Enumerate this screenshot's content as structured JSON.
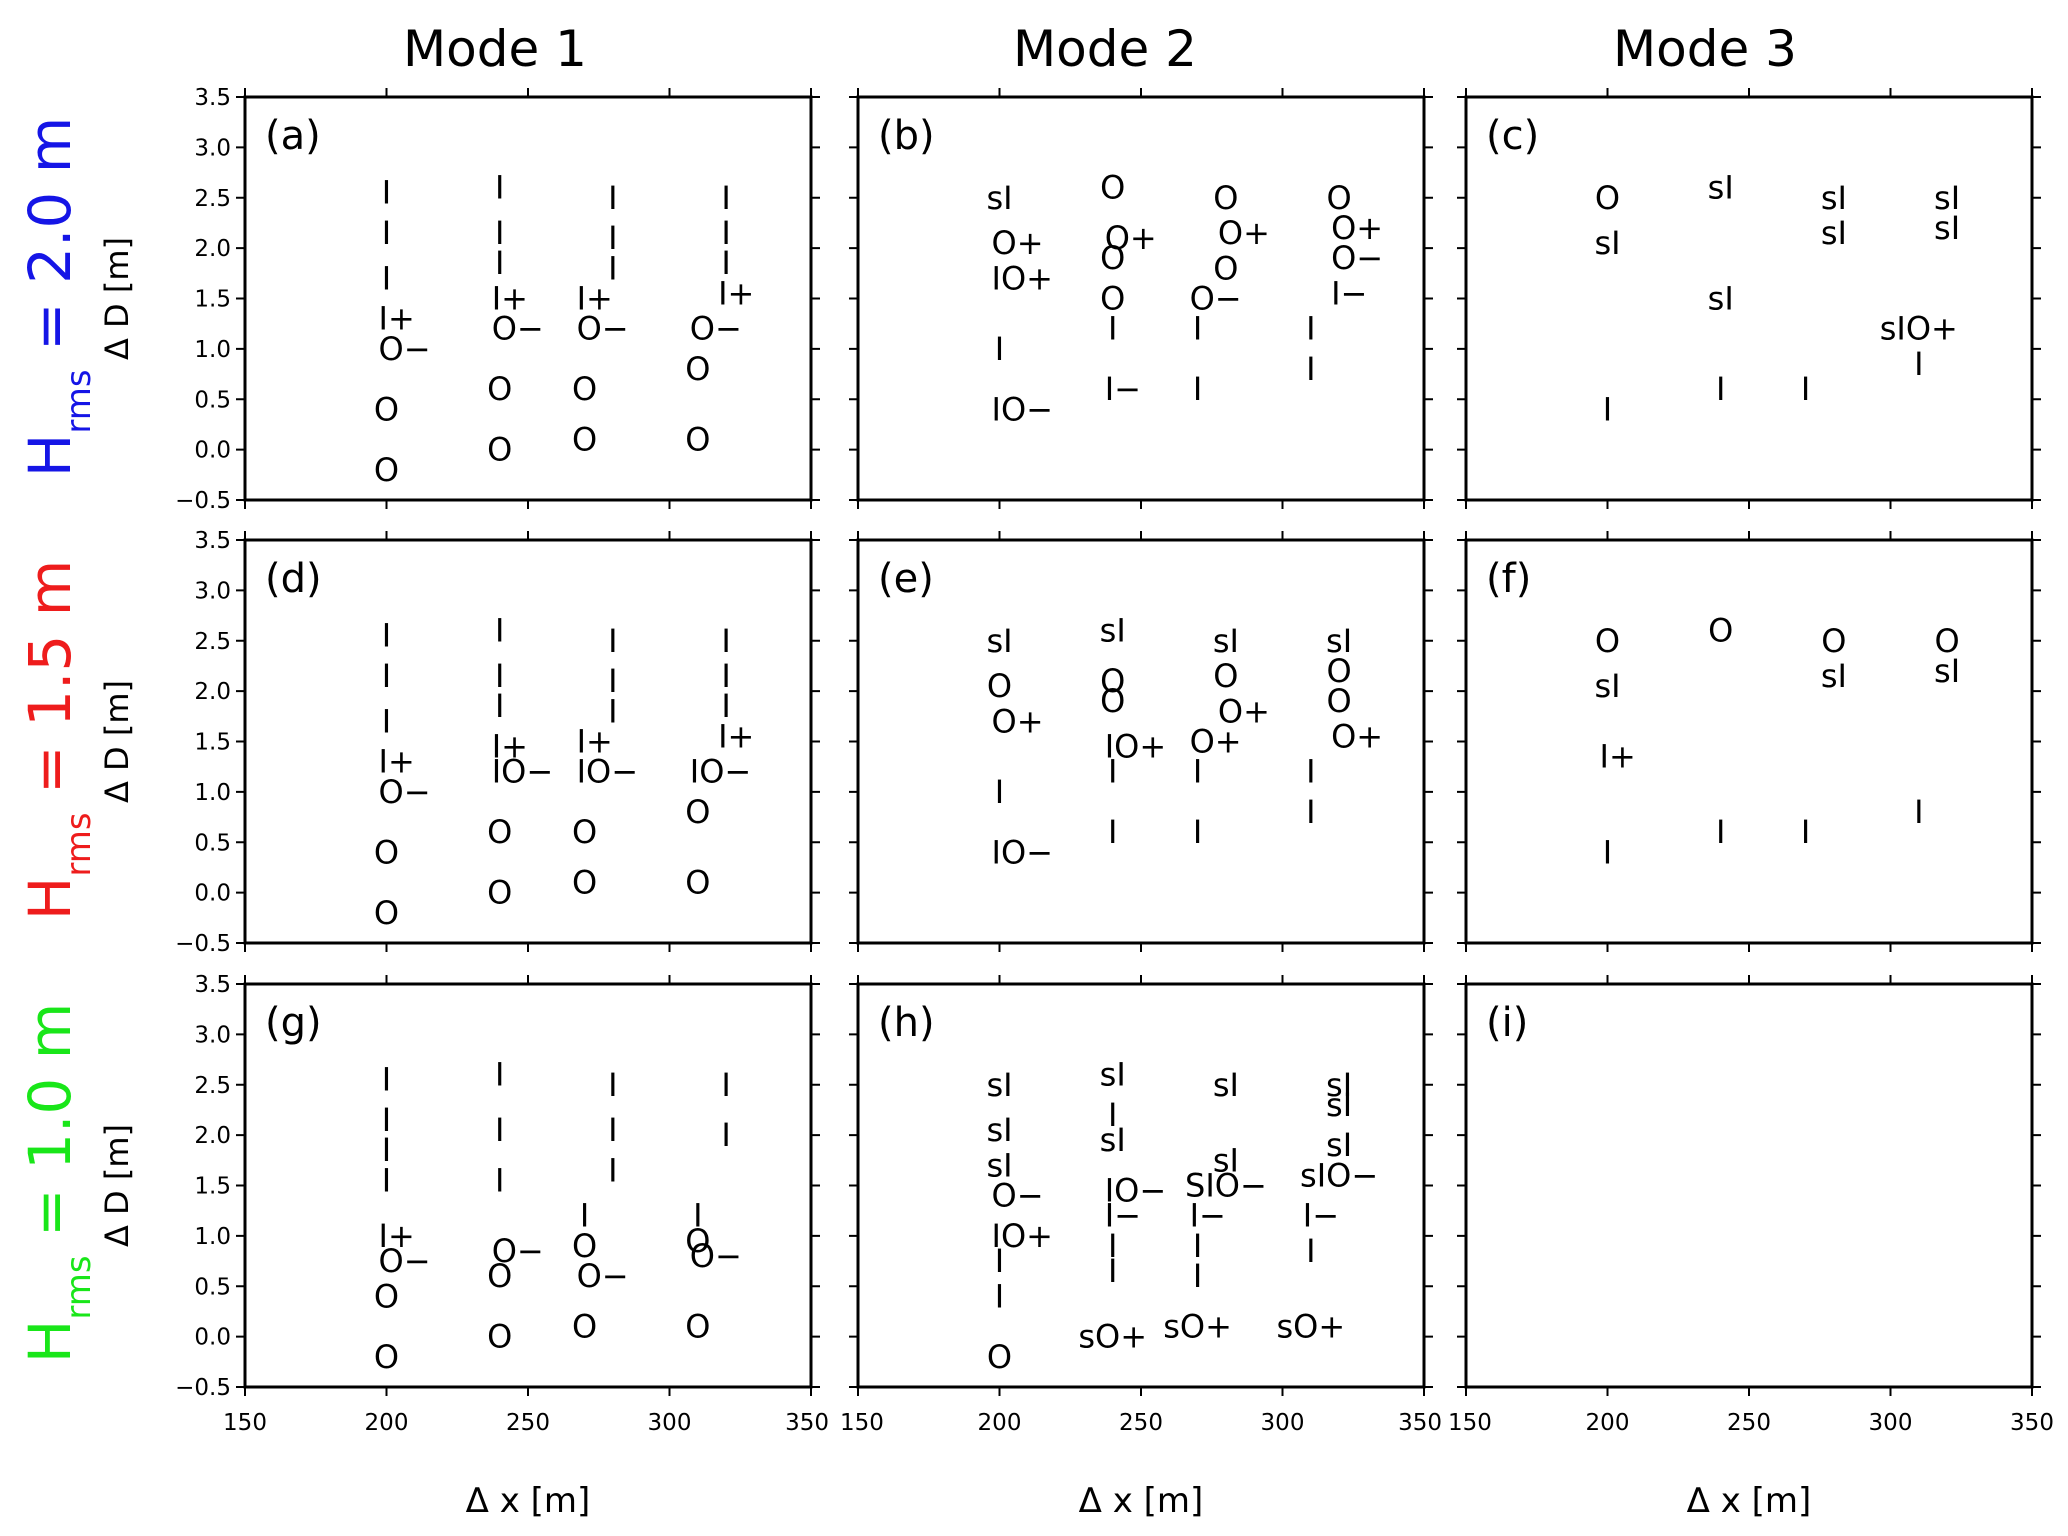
{
  "figure": {
    "column_titles": [
      "Mode 1",
      "Mode 2",
      "Mode 3"
    ],
    "row_titles": [
      {
        "base": "H",
        "sub": "rms",
        "rest": " = 2.0 m",
        "color": "#1515e6"
      },
      {
        "base": "H",
        "sub": "rms",
        "rest": " = 1.5 m",
        "color": "#ee1c1c"
      },
      {
        "base": "H",
        "sub": "rms",
        "rest": " = 1.0 m",
        "color": "#19e619"
      }
    ]
  },
  "chart_data": [
    {
      "type": "scatter",
      "panel": "(a)",
      "xlabel": "",
      "ylabel": "Δ D [m]",
      "xlim": [
        150,
        350
      ],
      "ylim": [
        -0.5,
        3.5
      ],
      "x_ticks": [],
      "y_ticks": [
        "−0.5",
        "0.0",
        "0.5",
        "1.0",
        "1.5",
        "2.0",
        "2.5",
        "3.0",
        "3.5"
      ],
      "points": [
        {
          "x": 200,
          "y": 2.55,
          "m": "I"
        },
        {
          "x": 200,
          "y": 2.15,
          "m": "I"
        },
        {
          "x": 200,
          "y": 1.7,
          "m": "I"
        },
        {
          "x": 200,
          "y": 1.3,
          "m": "I+"
        },
        {
          "x": 200,
          "y": 1.0,
          "m": "O−"
        },
        {
          "x": 200,
          "y": 0.4,
          "m": "O"
        },
        {
          "x": 200,
          "y": -0.2,
          "m": "O"
        },
        {
          "x": 240,
          "y": 2.6,
          "m": "I"
        },
        {
          "x": 240,
          "y": 2.15,
          "m": "I"
        },
        {
          "x": 240,
          "y": 1.85,
          "m": "I"
        },
        {
          "x": 240,
          "y": 1.5,
          "m": "I+"
        },
        {
          "x": 240,
          "y": 1.2,
          "m": "O−"
        },
        {
          "x": 240,
          "y": 0.6,
          "m": "O"
        },
        {
          "x": 240,
          "y": 0.0,
          "m": "O"
        },
        {
          "x": 280,
          "y": 2.5,
          "m": "I"
        },
        {
          "x": 280,
          "y": 2.1,
          "m": "I"
        },
        {
          "x": 280,
          "y": 1.8,
          "m": "I"
        },
        {
          "x": 270,
          "y": 1.5,
          "m": "I+"
        },
        {
          "x": 270,
          "y": 1.2,
          "m": "O−"
        },
        {
          "x": 270,
          "y": 0.6,
          "m": "O"
        },
        {
          "x": 270,
          "y": 0.1,
          "m": "O"
        },
        {
          "x": 320,
          "y": 2.5,
          "m": "I"
        },
        {
          "x": 320,
          "y": 2.15,
          "m": "I"
        },
        {
          "x": 320,
          "y": 1.85,
          "m": "I"
        },
        {
          "x": 320,
          "y": 1.55,
          "m": "I+"
        },
        {
          "x": 310,
          "y": 1.2,
          "m": "O−"
        },
        {
          "x": 310,
          "y": 0.8,
          "m": "O"
        },
        {
          "x": 310,
          "y": 0.1,
          "m": "O"
        }
      ]
    },
    {
      "type": "scatter",
      "panel": "(b)",
      "xlabel": "",
      "ylabel": "",
      "xlim": [
        150,
        350
      ],
      "ylim": [
        -0.5,
        3.5
      ],
      "x_ticks": [],
      "y_ticks": [],
      "points": [
        {
          "x": 200,
          "y": 2.5,
          "m": "sI"
        },
        {
          "x": 200,
          "y": 2.05,
          "m": "O+"
        },
        {
          "x": 200,
          "y": 1.7,
          "m": "IO+"
        },
        {
          "x": 200,
          "y": 1.0,
          "m": "I"
        },
        {
          "x": 200,
          "y": 0.4,
          "m": "IO−"
        },
        {
          "x": 240,
          "y": 2.6,
          "m": "O"
        },
        {
          "x": 240,
          "y": 2.1,
          "m": "O+"
        },
        {
          "x": 240,
          "y": 1.9,
          "m": "O"
        },
        {
          "x": 240,
          "y": 1.5,
          "m": "O"
        },
        {
          "x": 240,
          "y": 1.2,
          "m": "I"
        },
        {
          "x": 240,
          "y": 0.6,
          "m": "I−"
        },
        {
          "x": 280,
          "y": 2.5,
          "m": "O"
        },
        {
          "x": 280,
          "y": 2.15,
          "m": "O+"
        },
        {
          "x": 280,
          "y": 1.8,
          "m": "O"
        },
        {
          "x": 270,
          "y": 1.5,
          "m": "O−"
        },
        {
          "x": 270,
          "y": 1.2,
          "m": "I"
        },
        {
          "x": 270,
          "y": 0.6,
          "m": "I"
        },
        {
          "x": 320,
          "y": 2.5,
          "m": "O"
        },
        {
          "x": 320,
          "y": 2.2,
          "m": "O+"
        },
        {
          "x": 320,
          "y": 1.9,
          "m": "O−"
        },
        {
          "x": 320,
          "y": 1.55,
          "m": "I−"
        },
        {
          "x": 310,
          "y": 1.2,
          "m": "I"
        },
        {
          "x": 310,
          "y": 0.8,
          "m": "I"
        }
      ]
    },
    {
      "type": "scatter",
      "panel": "(c)",
      "xlabel": "",
      "ylabel": "",
      "xlim": [
        150,
        350
      ],
      "ylim": [
        -0.5,
        3.5
      ],
      "x_ticks": [],
      "y_ticks": [],
      "points": [
        {
          "x": 200,
          "y": 2.5,
          "m": "O"
        },
        {
          "x": 200,
          "y": 2.05,
          "m": "sI"
        },
        {
          "x": 200,
          "y": 0.4,
          "m": "I"
        },
        {
          "x": 240,
          "y": 2.6,
          "m": "sI"
        },
        {
          "x": 240,
          "y": 1.5,
          "m": "sI"
        },
        {
          "x": 240,
          "y": 0.6,
          "m": "I"
        },
        {
          "x": 280,
          "y": 2.5,
          "m": "sI"
        },
        {
          "x": 280,
          "y": 2.15,
          "m": "sI"
        },
        {
          "x": 270,
          "y": 0.6,
          "m": "I"
        },
        {
          "x": 320,
          "y": 2.5,
          "m": "sI"
        },
        {
          "x": 320,
          "y": 2.2,
          "m": "sI"
        },
        {
          "x": 310,
          "y": 1.2,
          "m": "sIO+"
        },
        {
          "x": 310,
          "y": 0.85,
          "m": "I"
        }
      ]
    },
    {
      "type": "scatter",
      "panel": "(d)",
      "xlabel": "",
      "ylabel": "Δ D [m]",
      "xlim": [
        150,
        350
      ],
      "ylim": [
        -0.5,
        3.5
      ],
      "x_ticks": [],
      "y_ticks": [
        "−0.5",
        "0.0",
        "0.5",
        "1.0",
        "1.5",
        "2.0",
        "2.5",
        "3.0",
        "3.5"
      ],
      "points": [
        {
          "x": 200,
          "y": 2.55,
          "m": "I"
        },
        {
          "x": 200,
          "y": 2.15,
          "m": "I"
        },
        {
          "x": 200,
          "y": 1.7,
          "m": "I"
        },
        {
          "x": 200,
          "y": 1.3,
          "m": "I+"
        },
        {
          "x": 200,
          "y": 1.0,
          "m": "O−"
        },
        {
          "x": 200,
          "y": 0.4,
          "m": "O"
        },
        {
          "x": 200,
          "y": -0.2,
          "m": "O"
        },
        {
          "x": 240,
          "y": 2.6,
          "m": "I"
        },
        {
          "x": 240,
          "y": 2.15,
          "m": "I"
        },
        {
          "x": 240,
          "y": 1.85,
          "m": "I"
        },
        {
          "x": 240,
          "y": 1.45,
          "m": "I+"
        },
        {
          "x": 240,
          "y": 1.2,
          "m": "IO−"
        },
        {
          "x": 240,
          "y": 0.6,
          "m": "O"
        },
        {
          "x": 240,
          "y": 0.0,
          "m": "O"
        },
        {
          "x": 280,
          "y": 2.5,
          "m": "I"
        },
        {
          "x": 280,
          "y": 2.1,
          "m": "I"
        },
        {
          "x": 280,
          "y": 1.8,
          "m": "I"
        },
        {
          "x": 270,
          "y": 1.5,
          "m": "I+"
        },
        {
          "x": 270,
          "y": 1.2,
          "m": "IO−"
        },
        {
          "x": 270,
          "y": 0.6,
          "m": "O"
        },
        {
          "x": 270,
          "y": 0.1,
          "m": "O"
        },
        {
          "x": 320,
          "y": 2.5,
          "m": "I"
        },
        {
          "x": 320,
          "y": 2.15,
          "m": "I"
        },
        {
          "x": 320,
          "y": 1.85,
          "m": "I"
        },
        {
          "x": 320,
          "y": 1.55,
          "m": "I+"
        },
        {
          "x": 310,
          "y": 1.2,
          "m": "IO−"
        },
        {
          "x": 310,
          "y": 0.8,
          "m": "O"
        },
        {
          "x": 310,
          "y": 0.1,
          "m": "O"
        }
      ]
    },
    {
      "type": "scatter",
      "panel": "(e)",
      "xlabel": "",
      "ylabel": "",
      "xlim": [
        150,
        350
      ],
      "ylim": [
        -0.5,
        3.5
      ],
      "x_ticks": [],
      "y_ticks": [],
      "points": [
        {
          "x": 200,
          "y": 2.5,
          "m": "sI"
        },
        {
          "x": 200,
          "y": 2.05,
          "m": "O"
        },
        {
          "x": 200,
          "y": 1.7,
          "m": "O+"
        },
        {
          "x": 200,
          "y": 1.0,
          "m": "I"
        },
        {
          "x": 200,
          "y": 0.4,
          "m": "IO−"
        },
        {
          "x": 240,
          "y": 2.6,
          "m": "sI"
        },
        {
          "x": 240,
          "y": 2.1,
          "m": "O"
        },
        {
          "x": 240,
          "y": 1.9,
          "m": "O"
        },
        {
          "x": 240,
          "y": 1.45,
          "m": "IO+"
        },
        {
          "x": 240,
          "y": 1.2,
          "m": "I"
        },
        {
          "x": 240,
          "y": 0.6,
          "m": "I"
        },
        {
          "x": 280,
          "y": 2.5,
          "m": "sI"
        },
        {
          "x": 280,
          "y": 2.15,
          "m": "O"
        },
        {
          "x": 280,
          "y": 1.8,
          "m": "O+"
        },
        {
          "x": 270,
          "y": 1.5,
          "m": "O+"
        },
        {
          "x": 270,
          "y": 1.2,
          "m": "I"
        },
        {
          "x": 270,
          "y": 0.6,
          "m": "I"
        },
        {
          "x": 320,
          "y": 2.5,
          "m": "sI"
        },
        {
          "x": 320,
          "y": 2.2,
          "m": "O"
        },
        {
          "x": 320,
          "y": 1.9,
          "m": "O"
        },
        {
          "x": 320,
          "y": 1.55,
          "m": "O+"
        },
        {
          "x": 310,
          "y": 1.2,
          "m": "I"
        },
        {
          "x": 310,
          "y": 0.8,
          "m": "I"
        }
      ]
    },
    {
      "type": "scatter",
      "panel": "(f)",
      "xlabel": "",
      "ylabel": "",
      "xlim": [
        150,
        350
      ],
      "ylim": [
        -0.5,
        3.5
      ],
      "x_ticks": [],
      "y_ticks": [],
      "points": [
        {
          "x": 200,
          "y": 2.5,
          "m": "O"
        },
        {
          "x": 200,
          "y": 2.05,
          "m": "sI"
        },
        {
          "x": 200,
          "y": 1.35,
          "m": "I+"
        },
        {
          "x": 200,
          "y": 0.4,
          "m": "I"
        },
        {
          "x": 240,
          "y": 2.6,
          "m": "O"
        },
        {
          "x": 240,
          "y": 0.6,
          "m": "I"
        },
        {
          "x": 280,
          "y": 2.5,
          "m": "O"
        },
        {
          "x": 280,
          "y": 2.15,
          "m": "sI"
        },
        {
          "x": 270,
          "y": 0.6,
          "m": "I"
        },
        {
          "x": 320,
          "y": 2.5,
          "m": "O"
        },
        {
          "x": 320,
          "y": 2.2,
          "m": "sI"
        },
        {
          "x": 310,
          "y": 0.8,
          "m": "I"
        }
      ]
    },
    {
      "type": "scatter",
      "panel": "(g)",
      "xlabel": "Δ x [m]",
      "ylabel": "Δ D [m]",
      "xlim": [
        150,
        350
      ],
      "ylim": [
        -0.5,
        3.5
      ],
      "x_ticks": [
        "150",
        "200",
        "250",
        "300",
        "350"
      ],
      "y_ticks": [
        "−0.5",
        "0.0",
        "0.5",
        "1.0",
        "1.5",
        "2.0",
        "2.5",
        "3.0",
        "3.5"
      ],
      "points": [
        {
          "x": 200,
          "y": 2.55,
          "m": "I"
        },
        {
          "x": 200,
          "y": 2.15,
          "m": "I"
        },
        {
          "x": 200,
          "y": 1.85,
          "m": "I"
        },
        {
          "x": 200,
          "y": 1.55,
          "m": "I"
        },
        {
          "x": 200,
          "y": 1.0,
          "m": "I+"
        },
        {
          "x": 200,
          "y": 0.75,
          "m": "O−"
        },
        {
          "x": 200,
          "y": 0.4,
          "m": "O"
        },
        {
          "x": 200,
          "y": -0.2,
          "m": "O"
        },
        {
          "x": 240,
          "y": 2.6,
          "m": "I"
        },
        {
          "x": 240,
          "y": 2.05,
          "m": "I"
        },
        {
          "x": 240,
          "y": 1.55,
          "m": "I"
        },
        {
          "x": 240,
          "y": 0.85,
          "m": "O−"
        },
        {
          "x": 240,
          "y": 0.6,
          "m": "O"
        },
        {
          "x": 240,
          "y": 0.0,
          "m": "O"
        },
        {
          "x": 280,
          "y": 2.5,
          "m": "I"
        },
        {
          "x": 280,
          "y": 2.05,
          "m": "I"
        },
        {
          "x": 280,
          "y": 1.65,
          "m": "I"
        },
        {
          "x": 270,
          "y": 1.2,
          "m": "I"
        },
        {
          "x": 270,
          "y": 0.9,
          "m": "O"
        },
        {
          "x": 270,
          "y": 0.6,
          "m": "O−"
        },
        {
          "x": 270,
          "y": 0.1,
          "m": "O"
        },
        {
          "x": 320,
          "y": 2.5,
          "m": "I"
        },
        {
          "x": 320,
          "y": 2.0,
          "m": "I"
        },
        {
          "x": 310,
          "y": 1.2,
          "m": "I"
        },
        {
          "x": 310,
          "y": 0.95,
          "m": "O"
        },
        {
          "x": 310,
          "y": 0.8,
          "m": "O−"
        },
        {
          "x": 310,
          "y": 0.1,
          "m": "O"
        }
      ]
    },
    {
      "type": "scatter",
      "panel": "(h)",
      "xlabel": "Δ x [m]",
      "ylabel": "",
      "xlim": [
        150,
        350
      ],
      "ylim": [
        -0.5,
        3.5
      ],
      "x_ticks": [
        "150",
        "200",
        "250",
        "300",
        "350"
      ],
      "y_ticks": [],
      "points": [
        {
          "x": 200,
          "y": 2.5,
          "m": "sI"
        },
        {
          "x": 200,
          "y": 2.05,
          "m": "sI"
        },
        {
          "x": 200,
          "y": 1.7,
          "m": "sI"
        },
        {
          "x": 200,
          "y": 1.4,
          "m": "O−"
        },
        {
          "x": 200,
          "y": 1.0,
          "m": "IO+"
        },
        {
          "x": 200,
          "y": 0.75,
          "m": "I"
        },
        {
          "x": 200,
          "y": 0.4,
          "m": "I"
        },
        {
          "x": 200,
          "y": -0.2,
          "m": "O"
        },
        {
          "x": 240,
          "y": 2.6,
          "m": "sI"
        },
        {
          "x": 240,
          "y": 2.2,
          "m": "I"
        },
        {
          "x": 240,
          "y": 1.95,
          "m": "sI"
        },
        {
          "x": 240,
          "y": 1.45,
          "m": "IO−"
        },
        {
          "x": 240,
          "y": 1.2,
          "m": "I−"
        },
        {
          "x": 240,
          "y": 0.9,
          "m": "I"
        },
        {
          "x": 240,
          "y": 0.65,
          "m": "I"
        },
        {
          "x": 240,
          "y": 0.0,
          "m": "sO+"
        },
        {
          "x": 280,
          "y": 2.5,
          "m": "sI"
        },
        {
          "x": 280,
          "y": 1.75,
          "m": "sI"
        },
        {
          "x": 280,
          "y": 1.5,
          "m": "SIO−"
        },
        {
          "x": 270,
          "y": 1.2,
          "m": "I−"
        },
        {
          "x": 270,
          "y": 0.9,
          "m": "I"
        },
        {
          "x": 270,
          "y": 0.6,
          "m": "I"
        },
        {
          "x": 270,
          "y": 0.1,
          "m": "sO+"
        },
        {
          "x": 320,
          "y": 2.5,
          "m": "sI"
        },
        {
          "x": 320,
          "y": 2.3,
          "m": "sI"
        },
        {
          "x": 320,
          "y": 1.9,
          "m": "sI"
        },
        {
          "x": 320,
          "y": 1.6,
          "m": "sIO−"
        },
        {
          "x": 310,
          "y": 1.2,
          "m": "I−"
        },
        {
          "x": 310,
          "y": 0.85,
          "m": "I"
        },
        {
          "x": 310,
          "y": 0.1,
          "m": "sO+"
        }
      ]
    },
    {
      "type": "scatter",
      "panel": "(i)",
      "xlabel": "Δ x [m]",
      "ylabel": "",
      "xlim": [
        150,
        350
      ],
      "ylim": [
        -0.5,
        3.5
      ],
      "x_ticks": [
        "150",
        "200",
        "250",
        "300",
        "350"
      ],
      "y_ticks": [],
      "points": []
    }
  ]
}
